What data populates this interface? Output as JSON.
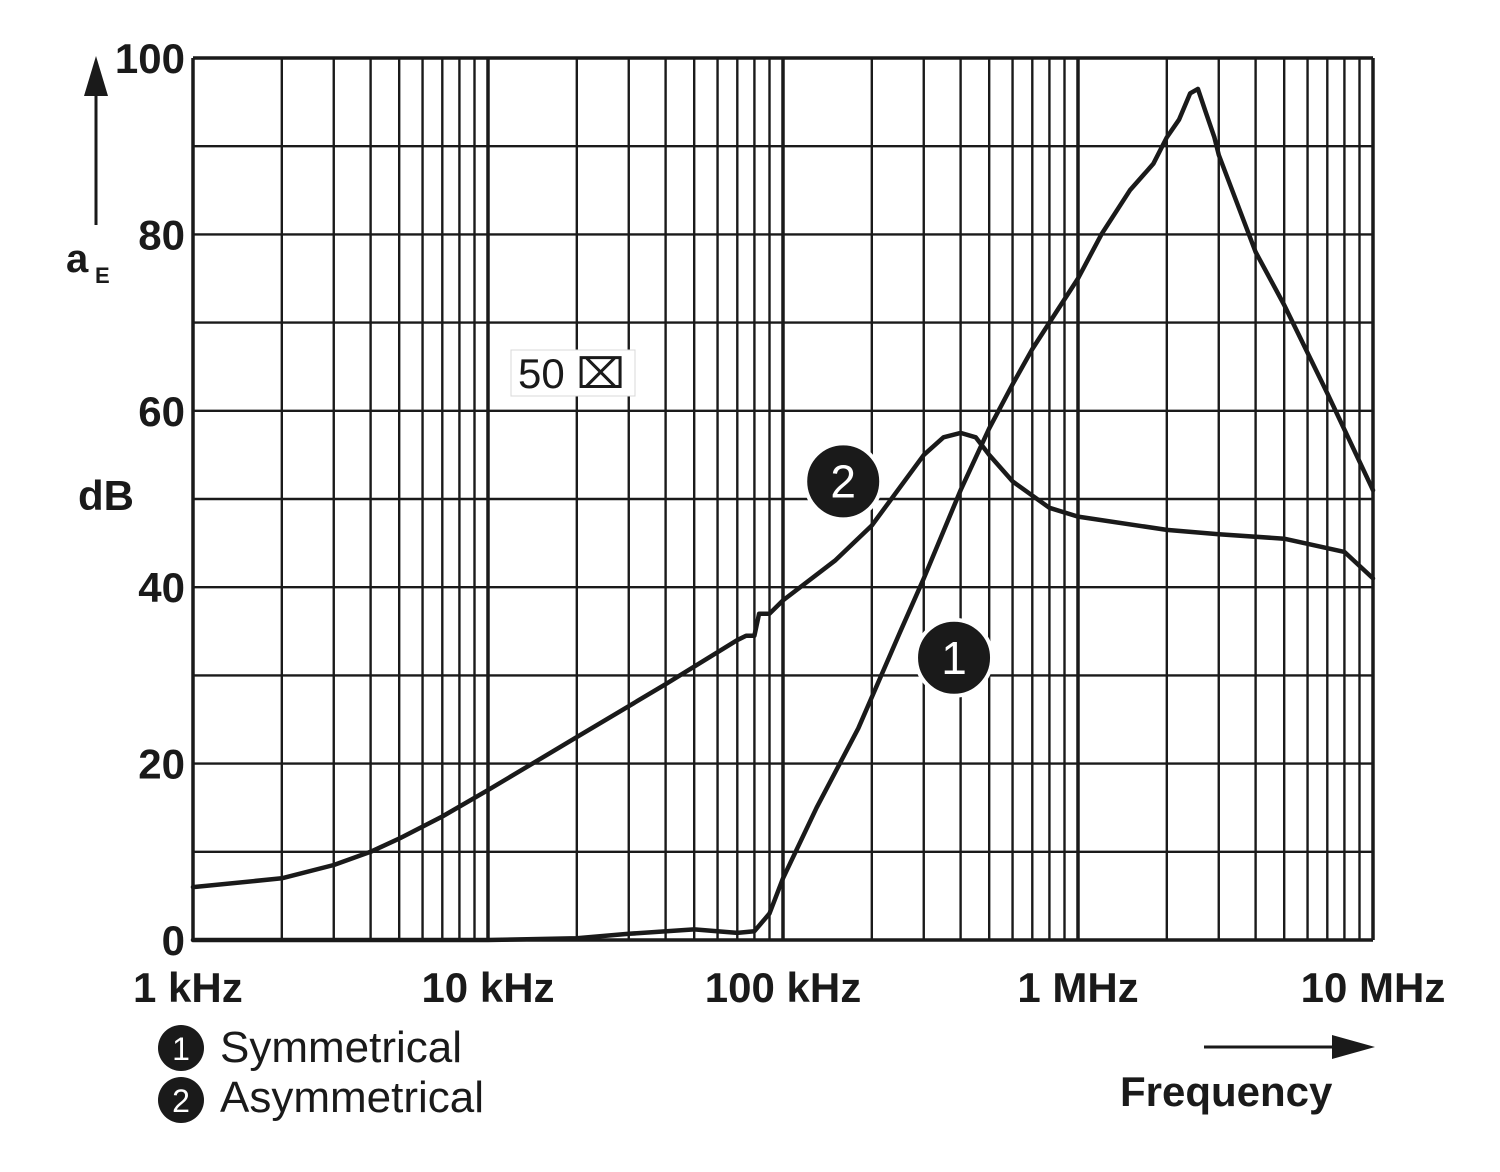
{
  "chart_data": {
    "type": "line",
    "x_scale": "log",
    "xlim": [
      1000,
      10000000
    ],
    "ylim": [
      0,
      100
    ],
    "grid": true,
    "ylabel": "a",
    "ylabel_sub": "E",
    "yunit": "dB",
    "xlabel": "Frequency",
    "impedance_label": "50 ⌧",
    "x_ticks": [
      {
        "value": 1000,
        "label": "1 kHz"
      },
      {
        "value": 10000,
        "label": "10 kHz"
      },
      {
        "value": 100000,
        "label": "100 kHz"
      },
      {
        "value": 1000000,
        "label": "1 MHz"
      },
      {
        "value": 10000000,
        "label": "10 MHz"
      }
    ],
    "y_ticks": [
      {
        "value": 0,
        "label": "0"
      },
      {
        "value": 20,
        "label": "20"
      },
      {
        "value": 40,
        "label": "40"
      },
      {
        "value": 60,
        "label": "60"
      },
      {
        "value": 80,
        "label": "80"
      },
      {
        "value": 100,
        "label": "100"
      }
    ],
    "series": [
      {
        "marker": "1",
        "name": "Symmetrical",
        "label_at": [
          380000,
          32
        ],
        "points": [
          [
            1000,
            0
          ],
          [
            10000,
            0
          ],
          [
            20000,
            0.2
          ],
          [
            30000,
            0.7
          ],
          [
            50000,
            1.2
          ],
          [
            70000,
            0.8
          ],
          [
            80000,
            1.0
          ],
          [
            90000,
            3.0
          ],
          [
            100000,
            7.0
          ],
          [
            130000,
            15
          ],
          [
            180000,
            24
          ],
          [
            250000,
            35
          ],
          [
            300000,
            41
          ],
          [
            400000,
            51
          ],
          [
            500000,
            58
          ],
          [
            600000,
            63
          ],
          [
            700000,
            67
          ],
          [
            800000,
            70
          ],
          [
            1000000,
            75
          ],
          [
            1200000,
            80
          ],
          [
            1500000,
            85
          ],
          [
            1800000,
            88
          ],
          [
            2000000,
            91
          ],
          [
            2200000,
            93
          ],
          [
            2400000,
            96
          ],
          [
            2550000,
            96.5
          ],
          [
            2700000,
            94
          ],
          [
            2900000,
            91
          ],
          [
            3000000,
            89
          ],
          [
            4000000,
            78
          ],
          [
            5000000,
            72
          ],
          [
            7000000,
            62
          ],
          [
            10000000,
            51
          ]
        ]
      },
      {
        "marker": "2",
        "name": "Asymmetrical",
        "label_at": [
          160000,
          52
        ],
        "points": [
          [
            1000,
            6
          ],
          [
            2000,
            7
          ],
          [
            3000,
            8.5
          ],
          [
            4000,
            10
          ],
          [
            5000,
            11.5
          ],
          [
            7000,
            14
          ],
          [
            10000,
            17
          ],
          [
            20000,
            23
          ],
          [
            40000,
            29
          ],
          [
            70000,
            34
          ],
          [
            75000,
            34.5
          ],
          [
            80000,
            34.5
          ],
          [
            83000,
            37
          ],
          [
            90000,
            37
          ],
          [
            100000,
            38.5
          ],
          [
            150000,
            43
          ],
          [
            200000,
            47
          ],
          [
            300000,
            55
          ],
          [
            350000,
            57
          ],
          [
            400000,
            57.5
          ],
          [
            450000,
            57
          ],
          [
            500000,
            55
          ],
          [
            600000,
            52
          ],
          [
            800000,
            49
          ],
          [
            1000000,
            48
          ],
          [
            2000000,
            46.5
          ],
          [
            3000000,
            46
          ],
          [
            5000000,
            45.5
          ],
          [
            8000000,
            44
          ],
          [
            10000000,
            41
          ]
        ]
      }
    ],
    "legend": [
      {
        "marker": "1",
        "label": "Symmetrical"
      },
      {
        "marker": "2",
        "label": "Asymmetrical"
      }
    ],
    "legend_placement": "bottom-left"
  }
}
